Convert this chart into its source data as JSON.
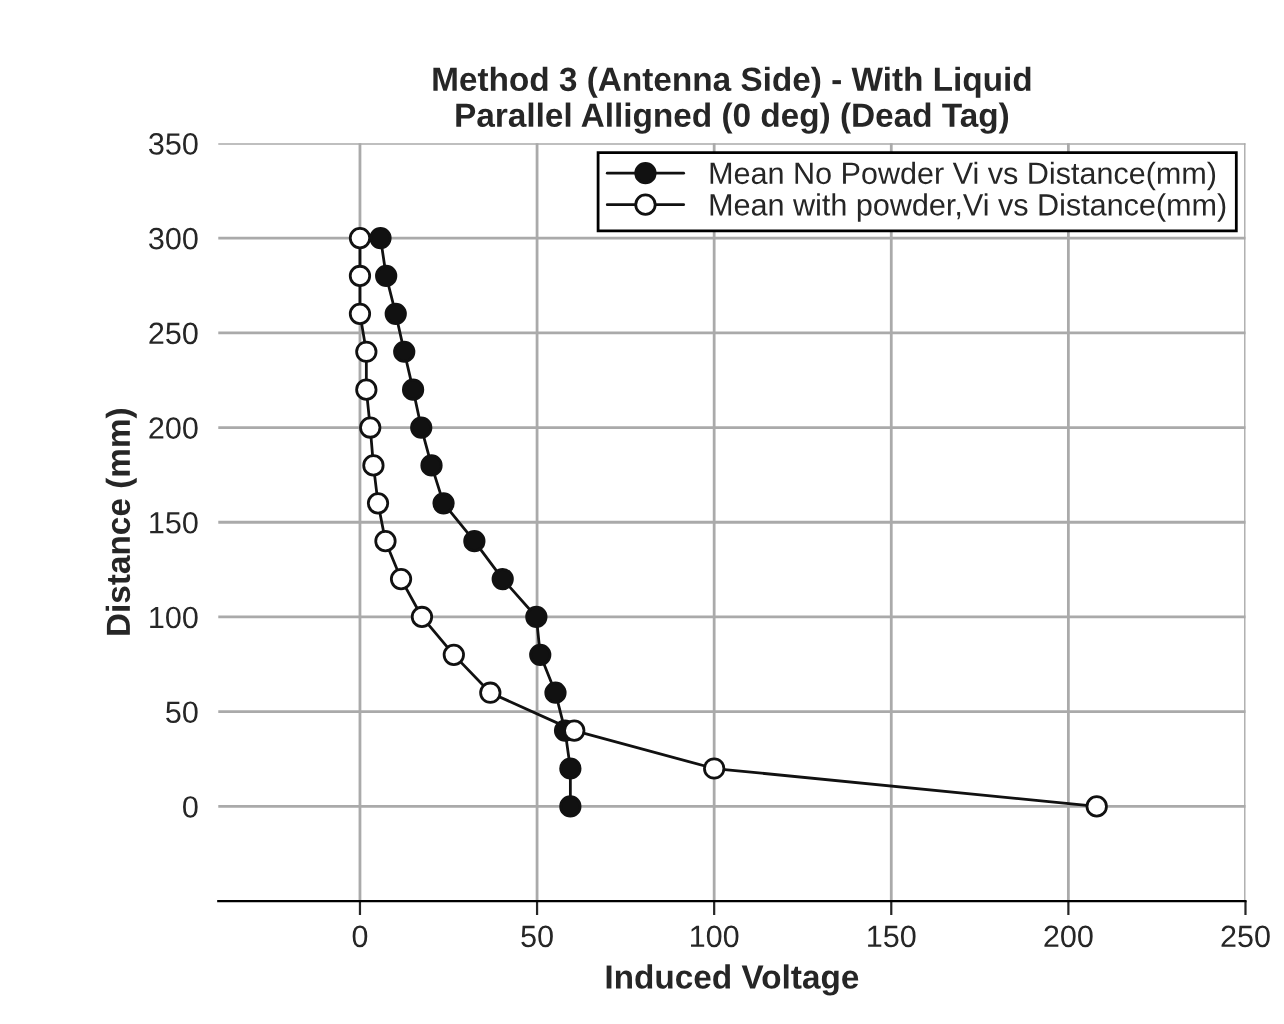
{
  "chart_data": {
    "type": "line",
    "title": "Method 3 (Antenna Side) - With Liquid\nParallel Alligned (0 deg) (Dead Tag)",
    "xlabel": "Induced Voltage",
    "ylabel": "Distance (mm)",
    "xlim": [
      -40,
      250
    ],
    "xticks": [
      0,
      50,
      100,
      150,
      200,
      250
    ],
    "ylim": [
      -50,
      350
    ],
    "yticks": [
      0,
      50,
      100,
      150,
      200,
      250,
      300,
      350
    ],
    "grid": true,
    "legend": "top right",
    "series": [
      {
        "name": "Mean No Powder Vi vs Distance(mm)",
        "color": "#111111",
        "marker": "circle",
        "x": [
          5.8,
          7.4,
          10.1,
          12.5,
          15,
          17.3,
          20.2,
          23.6,
          32.3,
          40.3,
          49.8,
          50.9,
          55.2,
          57.9,
          59.4,
          59.4
        ],
        "values": [
          300,
          280,
          260,
          240,
          220,
          200,
          180,
          160,
          140,
          120,
          100,
          80,
          60,
          40,
          20,
          0
        ]
      },
      {
        "name": "Mean with powder,Vi vs Distance(mm)",
        "color": "#ffffff",
        "marker": "circle",
        "x": [
          0,
          0,
          0,
          1.8,
          1.8,
          2.9,
          3.8,
          5.1,
          7.2,
          11.6,
          17.5,
          26.5,
          36.8,
          60.5,
          100,
          208
        ],
        "values": [
          300,
          280,
          260,
          240,
          220,
          200,
          180,
          160,
          140,
          120,
          100,
          80,
          60,
          40,
          20,
          0
        ]
      }
    ]
  }
}
